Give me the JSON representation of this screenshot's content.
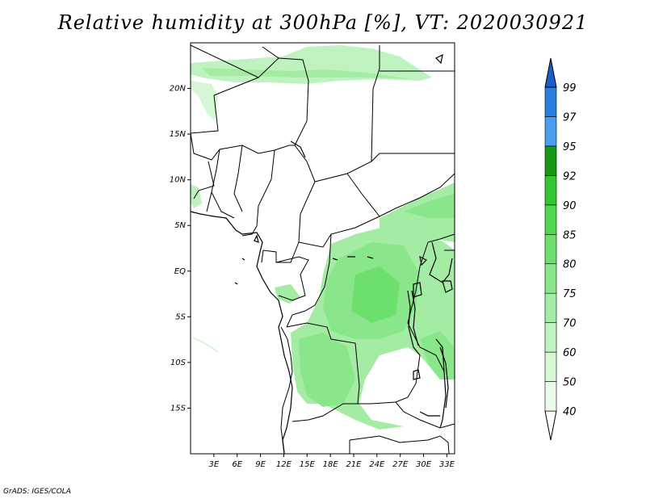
{
  "title": "Relative humidity at 300hPa [%], VT: 2020030921",
  "credit": "GrADS: IGES/COLA",
  "map": {
    "lon_range": [
      0,
      34
    ],
    "lat_range": [
      -20,
      25
    ],
    "lon_ticks": [
      "3E",
      "6E",
      "9E",
      "12E",
      "15E",
      "18E",
      "21E",
      "24E",
      "27E",
      "30E",
      "33E"
    ],
    "lat_ticks": [
      "20N",
      "15N",
      "10N",
      "5N",
      "EQ",
      "5S",
      "10S",
      "15S"
    ]
  },
  "colorbar": {
    "levels": [
      "40",
      "50",
      "60",
      "70",
      "75",
      "80",
      "85",
      "90",
      "92",
      "95",
      "97",
      "99"
    ],
    "colors": [
      "#ebfbeb",
      "#d6f7d6",
      "#bef2be",
      "#a4eca4",
      "#8ae68a",
      "#6cdf6c",
      "#4fd84f",
      "#33c633",
      "#169a16",
      "#4a9ef0",
      "#2b7fe0",
      "#1a5fc8"
    ]
  }
}
